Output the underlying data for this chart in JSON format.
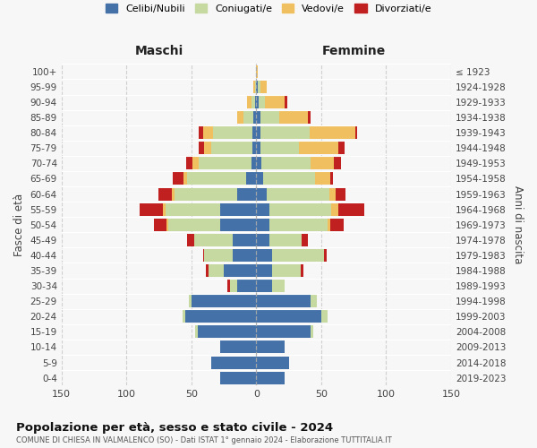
{
  "age_groups": [
    "0-4",
    "5-9",
    "10-14",
    "15-19",
    "20-24",
    "25-29",
    "30-34",
    "35-39",
    "40-44",
    "45-49",
    "50-54",
    "55-59",
    "60-64",
    "65-69",
    "70-74",
    "75-79",
    "80-84",
    "85-89",
    "90-94",
    "95-99",
    "100+"
  ],
  "birth_years": [
    "2019-2023",
    "2014-2018",
    "2009-2013",
    "2004-2008",
    "1999-2003",
    "1994-1998",
    "1989-1993",
    "1984-1988",
    "1979-1983",
    "1974-1978",
    "1969-1973",
    "1964-1968",
    "1959-1963",
    "1954-1958",
    "1949-1953",
    "1944-1948",
    "1939-1943",
    "1934-1938",
    "1929-1933",
    "1924-1928",
    "≤ 1923"
  ],
  "male": {
    "celibi": [
      28,
      35,
      28,
      45,
      55,
      50,
      15,
      25,
      18,
      18,
      28,
      28,
      15,
      8,
      4,
      3,
      3,
      2,
      1,
      0,
      0
    ],
    "coniugati": [
      0,
      0,
      0,
      2,
      2,
      2,
      5,
      12,
      22,
      30,
      40,
      42,
      48,
      45,
      40,
      32,
      30,
      8,
      3,
      1,
      0
    ],
    "vedovi": [
      0,
      0,
      0,
      0,
      0,
      0,
      0,
      0,
      0,
      0,
      1,
      2,
      2,
      3,
      5,
      5,
      8,
      5,
      3,
      1,
      0
    ],
    "divorziati": [
      0,
      0,
      0,
      0,
      0,
      0,
      2,
      2,
      1,
      5,
      10,
      18,
      10,
      8,
      5,
      4,
      3,
      0,
      0,
      0,
      0
    ]
  },
  "female": {
    "celibi": [
      22,
      25,
      22,
      42,
      50,
      42,
      12,
      12,
      12,
      10,
      10,
      10,
      8,
      5,
      4,
      3,
      3,
      3,
      2,
      1,
      0
    ],
    "coniugati": [
      0,
      0,
      0,
      2,
      5,
      5,
      10,
      22,
      40,
      25,
      45,
      48,
      48,
      40,
      38,
      30,
      38,
      15,
      5,
      2,
      0
    ],
    "vedovi": [
      0,
      0,
      0,
      0,
      0,
      0,
      0,
      0,
      0,
      0,
      2,
      5,
      5,
      12,
      18,
      30,
      35,
      22,
      15,
      5,
      1
    ],
    "divorziati": [
      0,
      0,
      0,
      0,
      0,
      0,
      0,
      2,
      2,
      5,
      10,
      20,
      8,
      2,
      5,
      5,
      2,
      2,
      2,
      0,
      0
    ]
  },
  "colors": {
    "celibi": "#4472a8",
    "coniugati": "#c5d9a0",
    "vedovi": "#f0c060",
    "divorziati": "#c02020"
  },
  "xlim": 150,
  "title": "Popolazione per età, sesso e stato civile - 2024",
  "subtitle": "COMUNE DI CHIESA IN VALMALENCO (SO) - Dati ISTAT 1° gennaio 2024 - Elaborazione TUTTITALIA.IT",
  "xlabel_left": "Maschi",
  "xlabel_right": "Femmine",
  "ylabel_left": "Fasce di età",
  "ylabel_right": "Anni di nascita",
  "bg_color": "#f7f7f7",
  "legend_labels": [
    "Celibi/Nubili",
    "Coniugati/e",
    "Vedovi/e",
    "Divorziati/e"
  ]
}
